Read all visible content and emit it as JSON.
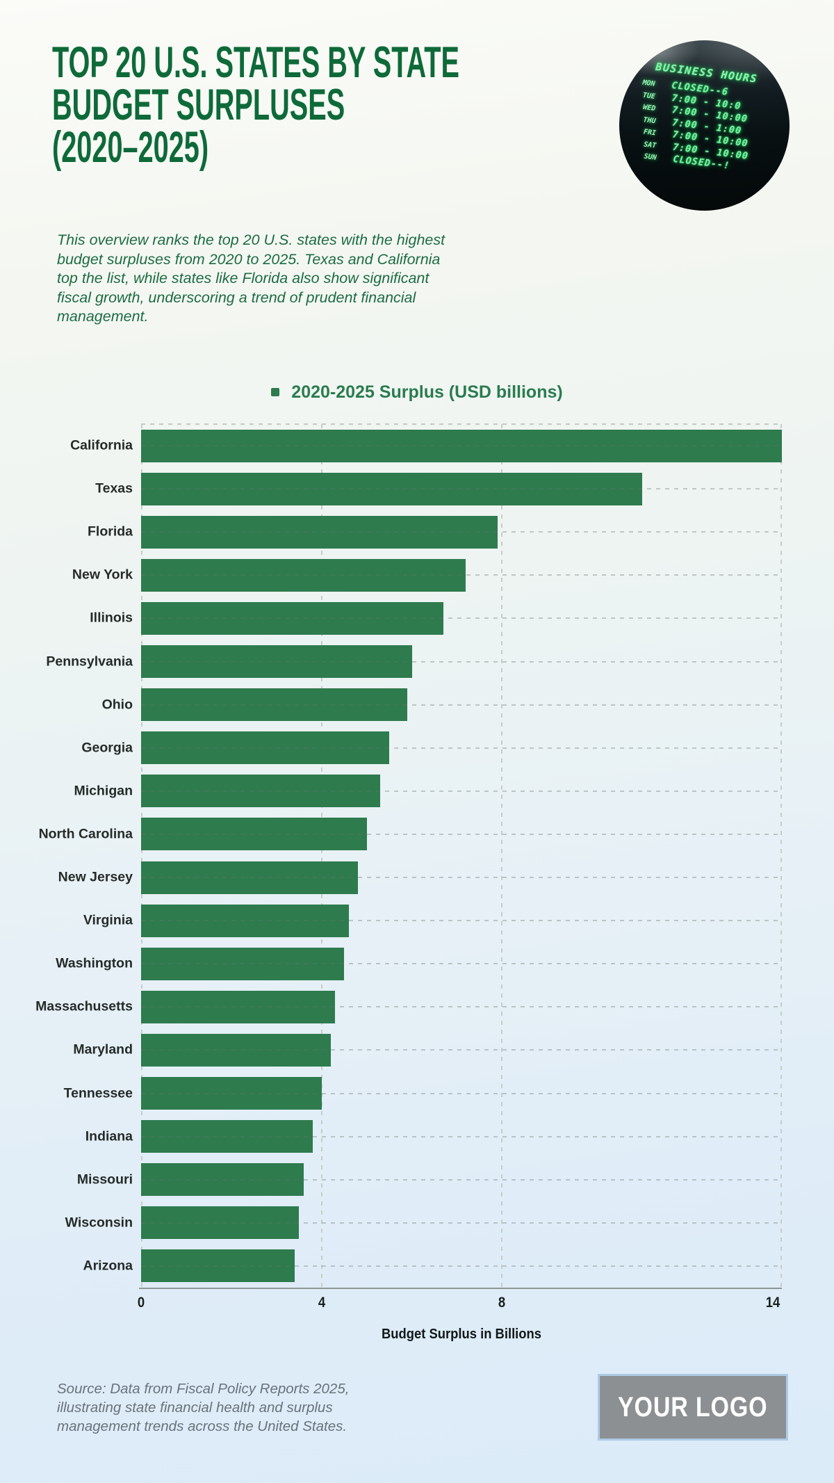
{
  "header": {
    "title_lines": [
      "TOP 20 U.S. STATES BY STATE",
      "BUDGET SURPLUSES",
      "(2020–2025)"
    ],
    "description": "This overview ranks the top 20 U.S. states with the highest budget surpluses from 2020 to 2025. Texas and California top the list, while states like Florida also show significant fiscal growth, underscoring a trend of prudent financial management."
  },
  "photo": {
    "sign_title": "BUSINESS HOURS",
    "hours": [
      {
        "day": "MON",
        "time": "CLOSED--6"
      },
      {
        "day": "TUE",
        "time": "7:00 - 10:0"
      },
      {
        "day": "WED",
        "time": "7:00 - 10:00"
      },
      {
        "day": "THU",
        "time": "7:00 - 1:00"
      },
      {
        "day": "FRI",
        "time": "7:00 - 10:00"
      },
      {
        "day": "SAT",
        "time": "7:00 - 10:00"
      },
      {
        "day": "SUN",
        "time": "CLOSED--!"
      }
    ]
  },
  "chart_data": {
    "type": "bar",
    "orientation": "horizontal",
    "legend": "2020-2025 Surplus (USD billions)",
    "categories": [
      "California",
      "Texas",
      "Florida",
      "New York",
      "Illinois",
      "Pennsylvania",
      "Ohio",
      "Georgia",
      "Michigan",
      "North Carolina",
      "New Jersey",
      "Virginia",
      "Washington",
      "Massachusetts",
      "Maryland",
      "Tennessee",
      "Indiana",
      "Missouri",
      "Wisconsin",
      "Arizona"
    ],
    "values": [
      14.2,
      11.1,
      7.9,
      7.2,
      6.7,
      6.0,
      5.9,
      5.5,
      5.3,
      5.0,
      4.8,
      4.6,
      4.5,
      4.3,
      4.2,
      4.0,
      3.8,
      3.6,
      3.5,
      3.4
    ],
    "xlabel": "Budget Surplus in Billions",
    "xlim": [
      0,
      14.2
    ],
    "xticks": [
      0,
      4,
      8,
      14
    ],
    "grid": "dashed",
    "legend_position": "top-center",
    "bar_color": "#2e7b4e"
  },
  "footer": {
    "source": "Source: Data from Fiscal Policy Reports 2025, illustrating state financial health and surplus management trends across the United States.",
    "logo_text": "YOUR LOGO"
  },
  "colors": {
    "title_green": "#0e6a39",
    "bar_green": "#2e7b4e",
    "legend_green": "#2a7c50",
    "page_top": "#fbfbf8",
    "page_bottom": "#dcebf8",
    "logo_gray": "#8d9092",
    "logo_border_blue": "#aecbe6"
  }
}
